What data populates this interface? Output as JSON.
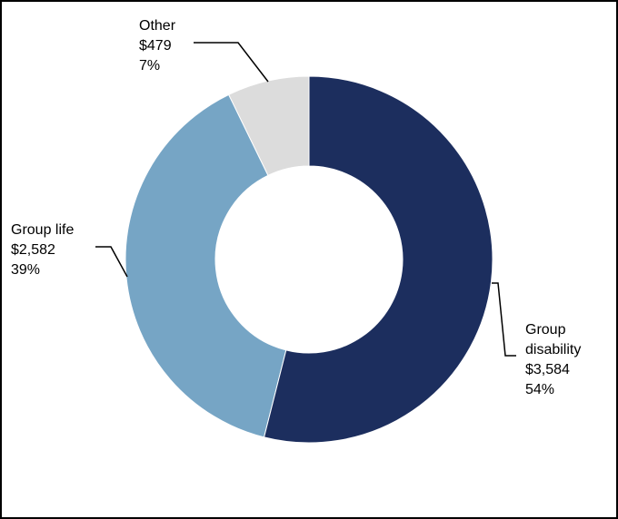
{
  "chart_data": {
    "type": "donut",
    "categories": [
      "Group disability",
      "Group life",
      "Other"
    ],
    "values": [
      3584,
      2582,
      479
    ],
    "value_labels": [
      "$3,584",
      "$2,582",
      "$479"
    ],
    "percentages": [
      54,
      39,
      7
    ],
    "percentage_labels": [
      "54%",
      "39%",
      "7%"
    ],
    "colors": [
      "#1c2e5e",
      "#76a5c5",
      "#dcdcdc"
    ]
  }
}
